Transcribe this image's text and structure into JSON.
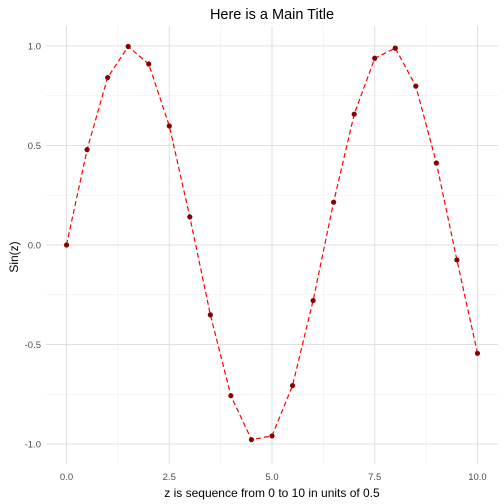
{
  "chart_data": {
    "type": "line",
    "title": "Here is a Main Title",
    "xlabel": "z is sequence from 0 to 10 in units of 0.5",
    "ylabel": "Sin(z)",
    "xlim": [
      -0.5,
      10.5
    ],
    "ylim": [
      -1.1,
      1.1
    ],
    "x_ticks": [
      0,
      2.5,
      5,
      7.5,
      10
    ],
    "x_tick_labels": [
      "0.0",
      "2.5",
      "5.0",
      "7.5",
      "10.0"
    ],
    "y_ticks": [
      -1,
      -0.5,
      0,
      0.5,
      1
    ],
    "y_tick_labels": [
      "-1.0",
      "-0.5",
      "0.0",
      "0.5",
      "1.0"
    ],
    "grid": true,
    "series": [
      {
        "line_style": "dashed",
        "line_color": "#ff0000",
        "marker_color": "#8b0000",
        "x": [
          0,
          0.5,
          1,
          1.5,
          2,
          2.5,
          3,
          3.5,
          4,
          4.5,
          5,
          5.5,
          6,
          6.5,
          7,
          7.5,
          8,
          8.5,
          9,
          9.5,
          10
        ],
        "y": [
          0.0,
          0.479,
          0.841,
          0.997,
          0.909,
          0.598,
          0.141,
          -0.351,
          -0.757,
          -0.978,
          -0.959,
          -0.706,
          -0.279,
          0.215,
          0.657,
          0.938,
          0.989,
          0.798,
          0.412,
          -0.075,
          -0.544
        ]
      }
    ]
  }
}
